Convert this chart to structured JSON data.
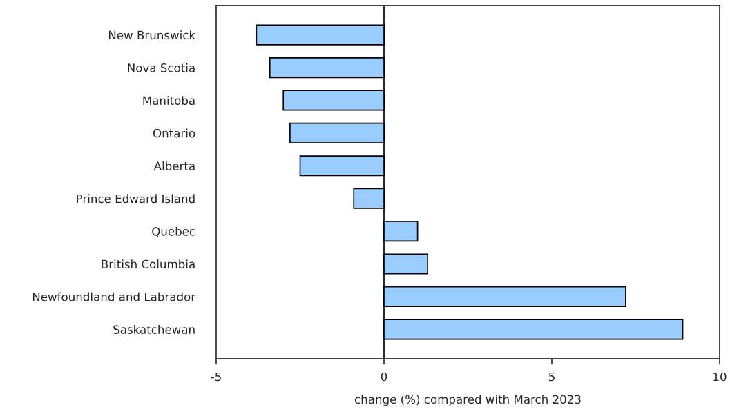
{
  "chart_data": {
    "type": "bar",
    "orientation": "horizontal",
    "xlabel": "change (%) compared with March 2023",
    "categories": [
      "New Brunswick",
      "Nova Scotia",
      "Manitoba",
      "Ontario",
      "Alberta",
      "Prince Edward Island",
      "Quebec",
      "British Columbia",
      "Newfoundland and Labrador",
      "Saskatchewan"
    ],
    "values": [
      -3.8,
      -3.4,
      -3.0,
      -2.8,
      -2.5,
      -0.9,
      1.0,
      1.3,
      7.2,
      8.9
    ],
    "color": "#99ccff",
    "xlim": [
      -5,
      10
    ],
    "xticks": [
      -5,
      0,
      5,
      10
    ],
    "ref_lines": [
      {
        "axis": "x",
        "value": 0,
        "color": "#000000"
      }
    ],
    "grid": false,
    "legend": false
  }
}
